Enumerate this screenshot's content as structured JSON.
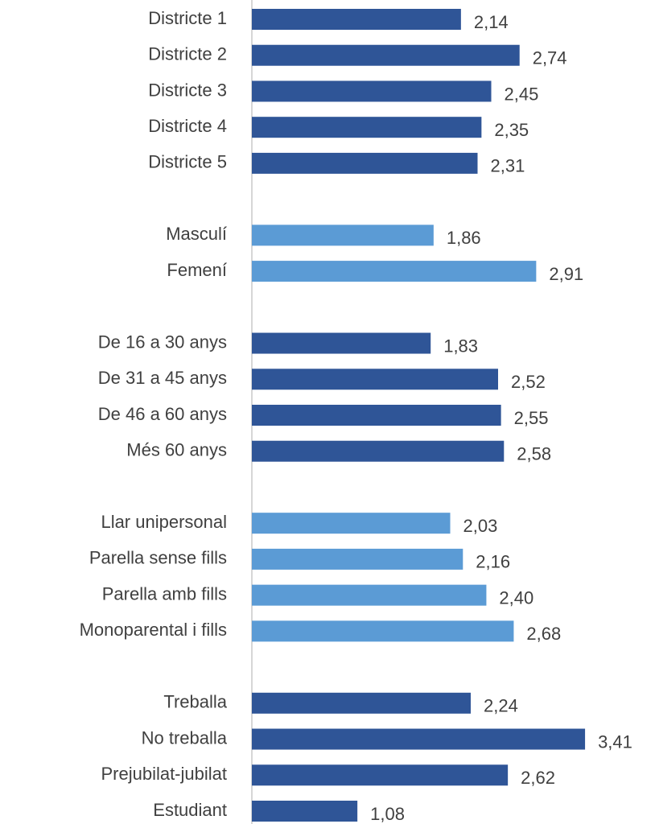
{
  "chart_data": {
    "type": "bar",
    "orientation": "horizontal",
    "categories": [
      "Districte 1",
      "Districte 2",
      "Districte 3",
      "Districte 4",
      "Districte 5",
      null,
      "Masculí",
      "Femení",
      null,
      "De 16 a 30 anys",
      "De 31 a 45 anys",
      "De 46 a 60 anys",
      "Més 60 anys",
      null,
      "Llar unipersonal",
      "Parella sense fills",
      "Parella amb fills",
      "Monoparental i fills",
      null,
      "Treballa",
      "No treballa",
      "Prejubilat-jubilat",
      "Estudiant"
    ],
    "values": [
      2.14,
      2.74,
      2.45,
      2.35,
      2.31,
      null,
      1.86,
      2.91,
      null,
      1.83,
      2.52,
      2.55,
      2.58,
      null,
      2.03,
      2.16,
      2.4,
      2.68,
      null,
      2.24,
      3.41,
      2.62,
      1.08
    ],
    "value_labels": [
      "2,14",
      "2,74",
      "2,45",
      "2,35",
      "2,31",
      null,
      "1,86",
      "2,91",
      null,
      "1,83",
      "2,52",
      "2,55",
      "2,58",
      null,
      "2,03",
      "2,16",
      "2,40",
      "2,68",
      null,
      "2,24",
      "3,41",
      "2,62",
      "1,08"
    ],
    "colors": [
      "#2f5597",
      "#2f5597",
      "#2f5597",
      "#2f5597",
      "#2f5597",
      null,
      "#5b9bd5",
      "#5b9bd5",
      null,
      "#2f5597",
      "#2f5597",
      "#2f5597",
      "#2f5597",
      null,
      "#5b9bd5",
      "#5b9bd5",
      "#5b9bd5",
      "#5b9bd5",
      null,
      "#2f5597",
      "#2f5597",
      "#2f5597",
      "#2f5597"
    ],
    "xlim": [
      0,
      3.5
    ]
  }
}
